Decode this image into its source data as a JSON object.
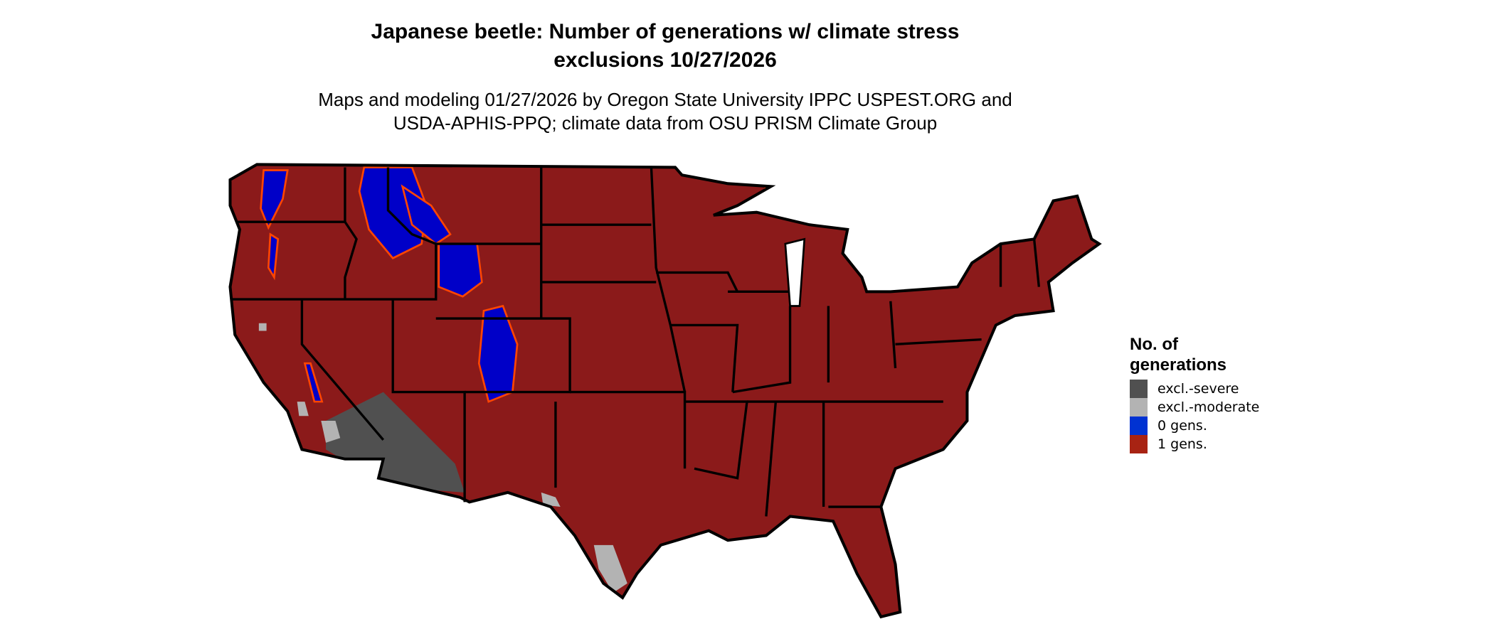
{
  "title": {
    "line1": "Japanese beetle: Number of generations w/ climate stress",
    "line2": "exclusions 10/27/2026"
  },
  "subtitle": {
    "line1": "Maps and modeling 01/27/2026 by Oregon State University IPPC USPEST.ORG and",
    "line2": "USDA-APHIS-PPQ; climate data from OSU PRISM Climate Group"
  },
  "map": {
    "region": "contiguous United States",
    "base_color": "#8b1a1a",
    "border_color": "#000000",
    "edge_color": "#ff4500"
  },
  "legend": {
    "title_line1": "No. of",
    "title_line2": "generations",
    "items": [
      {
        "label": "excl.-severe",
        "color": "#505050"
      },
      {
        "label": "excl.-moderate",
        "color": "#b3b3b3"
      },
      {
        "label": "0 gens.",
        "color": "#0032d2"
      },
      {
        "label": "1 gens.",
        "color": "#a82313"
      }
    ]
  }
}
